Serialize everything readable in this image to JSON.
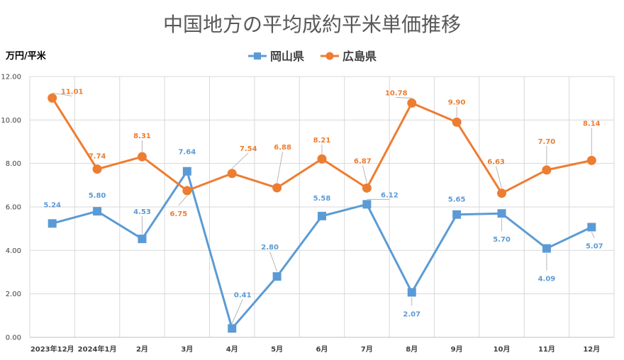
{
  "chart_data": {
    "type": "line",
    "title": "中国地方の平均成約平米単価推移",
    "ylabel": "万円/平米",
    "xlabel": "",
    "ylim": [
      0,
      12
    ],
    "yticks": [
      "0.00",
      "2.00",
      "4.00",
      "6.00",
      "8.00",
      "10.00",
      "12.00"
    ],
    "grid": true,
    "legend_position": "top",
    "categories": [
      "2023年12月",
      "2024年1月",
      "2月",
      "3月",
      "4月",
      "5月",
      "6月",
      "7月",
      "8月",
      "9月",
      "10月",
      "11月",
      "12月"
    ],
    "series": [
      {
        "name": "岡山県",
        "color": "#5B9BD5",
        "marker": "square",
        "values": [
          5.24,
          5.8,
          4.53,
          7.64,
          0.41,
          2.8,
          5.58,
          6.12,
          2.07,
          5.65,
          5.7,
          4.09,
          5.07
        ],
        "labels": [
          "5.24",
          "5.80",
          "4.53",
          "7.64",
          "0.41",
          "2.80",
          "5.58",
          "6.12",
          "2.07",
          "5.65",
          "5.70",
          "4.09",
          "5.07"
        ]
      },
      {
        "name": "広島県",
        "color": "#ED7D31",
        "marker": "circle",
        "values": [
          11.01,
          7.74,
          8.31,
          6.75,
          7.54,
          6.88,
          8.21,
          6.87,
          10.78,
          9.9,
          6.63,
          7.7,
          8.14
        ],
        "labels": [
          "11.01",
          "7.74",
          "8.31",
          "6.75",
          "7.54",
          "6.88",
          "8.21",
          "6.87",
          "10.78",
          "9.90",
          "6.63",
          "7.70",
          "8.14"
        ]
      }
    ]
  }
}
